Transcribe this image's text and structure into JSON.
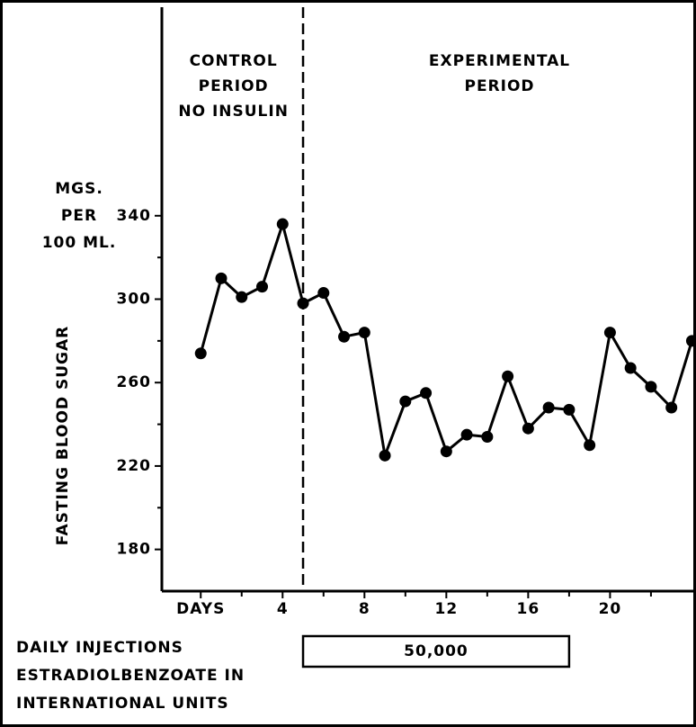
{
  "chart_data": {
    "type": "line",
    "ylabel": "FASTING BLOOD SUGAR",
    "yunit_lines": [
      "MGS.",
      "PER",
      "100 ML."
    ],
    "annotations": [
      {
        "x": 1.6,
        "lines": [
          "CONTROL",
          "PERIOD",
          "NO INSULIN"
        ]
      },
      {
        "x": 14.6,
        "lines": [
          "EXPERIMENTAL",
          "PERIOD"
        ]
      }
    ],
    "divider_x": 5,
    "x": [
      0,
      1,
      2,
      3,
      4,
      5,
      6,
      7,
      8,
      9,
      10,
      11,
      12,
      13,
      14,
      15,
      16,
      17,
      18,
      19,
      20,
      21,
      22,
      23,
      24
    ],
    "series": [
      {
        "color": "#000000",
        "values": [
          274,
          310,
          301,
          306,
          336,
          298,
          303,
          282,
          284,
          225,
          251,
          255,
          227,
          235,
          234,
          263,
          238,
          248,
          247,
          230,
          284,
          267,
          258,
          248,
          280
        ]
      }
    ],
    "xlim": [
      -1.9,
      24.2
    ],
    "ylim": [
      160,
      440
    ],
    "xticks": [
      {
        "value": 0,
        "label": "DAYS"
      },
      4,
      8,
      12,
      16,
      20
    ],
    "xminor_ticks": [
      2,
      6,
      10,
      14,
      18,
      22
    ],
    "yticks": [
      180,
      220,
      260,
      300,
      340
    ],
    "yminor_ticks": [
      200,
      240,
      280,
      320
    ],
    "injection_lines": [
      "DAILY INJECTIONS",
      "ESTRADIOLBENZOATE IN",
      "INTERNATIONAL UNITS"
    ],
    "injection_days": [
      5,
      18
    ],
    "injection_label": "50,000"
  }
}
